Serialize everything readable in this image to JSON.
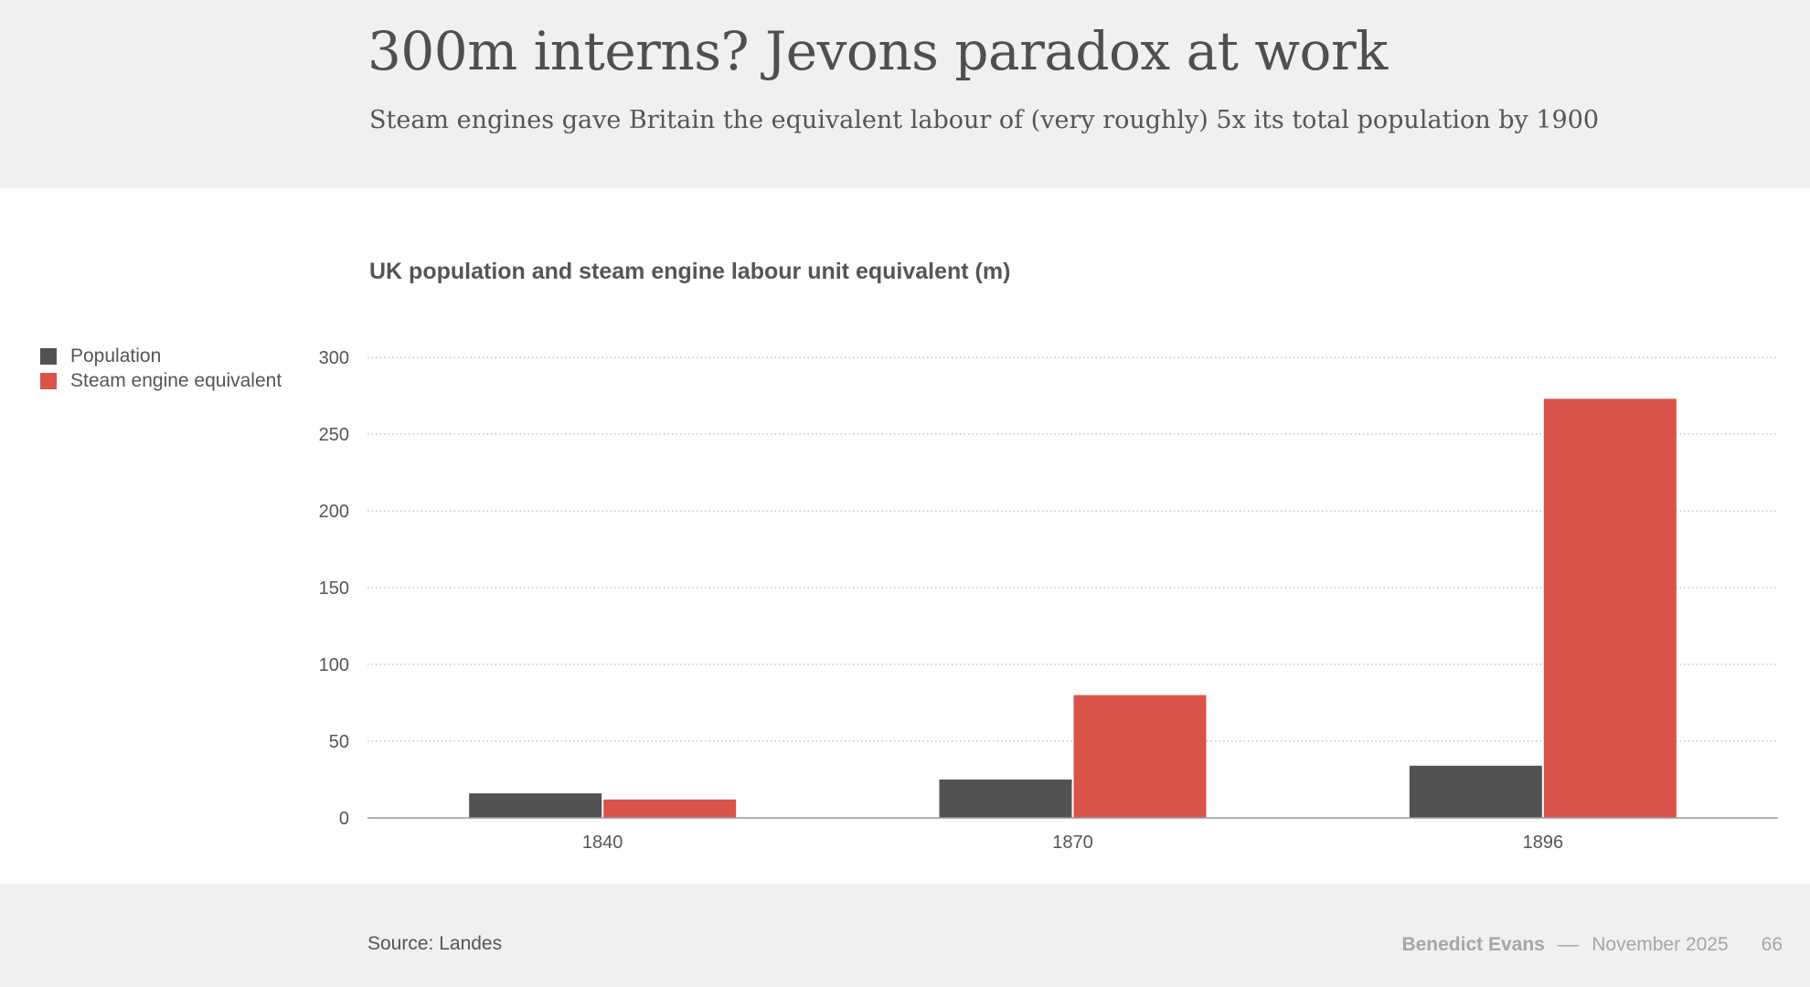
{
  "header": {
    "title": "300m interns? Jevons paradox at work",
    "subtitle": "Steam engines gave Britain the equivalent labour of (very roughly) 5x its total population by 1900"
  },
  "chart_data": {
    "type": "bar",
    "title": "UK population and steam engine labour unit equivalent (m)",
    "categories": [
      "1840",
      "1870",
      "1896"
    ],
    "series": [
      {
        "name": "Population",
        "values": [
          16,
          25,
          34
        ],
        "color": "#525252"
      },
      {
        "name": "Steam engine equivalent",
        "values": [
          12,
          80,
          273
        ],
        "color": "#d9534a"
      }
    ],
    "ylim": [
      0,
      300
    ],
    "yticks": [
      0,
      50,
      100,
      150,
      200,
      250,
      300
    ],
    "grid": true,
    "legend": "top-left"
  },
  "footer": {
    "source": "Source: Landes",
    "author": "Benedict Evans",
    "separator": "––",
    "date": "November 2025",
    "page": "66"
  }
}
